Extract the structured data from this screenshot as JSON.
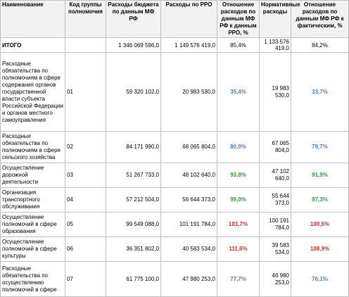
{
  "table": {
    "header": [
      "Наименование",
      "Код группы полномочия",
      "Расходы бюджета по данным МФ РФ",
      "Расходы по РРО",
      "Отношение расходов по данным МФ РФ к данным РРО, %",
      "Нормативные расходы",
      "Отношение расходов по данным МФ РФ к фактическим, %"
    ],
    "total": [
      "ИТОГО",
      "",
      "1 346 069 596,0",
      "1 149 576 419,0",
      "85,4%",
      "1 133 576 419,0",
      "84,2%"
    ],
    "rows": [
      {
        "cells": [
          "Расходные обязательства по полномочиям в сфере содержания органов государственной власти субъекта Российской Федерации и органов местного самоуправления",
          "01",
          "59 320 102,0",
          "20 983 530,0",
          "35,4%",
          "19 983 530,0",
          "33,7%"
        ],
        "color": "#4f81bd"
      },
      {
        "cells": [
          "Расходные обязательства по полномочиям в сфере сельского хозяйства",
          "02",
          "84 171 990,0",
          "68 065 804,0",
          "80,9%",
          "67 065 804,0",
          "79,7%"
        ],
        "color": "#4f81bd"
      },
      {
        "cells": [
          "Осуществление дорожной деятельности",
          "03",
          "51 267 733,0",
          "48 102 640,0",
          "93,8%",
          "47 102 640,0",
          "91,9%"
        ],
        "color": "#2e9b3a"
      },
      {
        "cells": [
          "Организация транспортного обслуживания",
          "04",
          "57 212 504,0",
          "56 644 373,0",
          "99,0%",
          "55 644 373,0",
          "97,3%"
        ],
        "color": "#2e9b3a"
      },
      {
        "cells": [
          "Осуществление полномочий в сфере образования",
          "05",
          "99 549 088,0",
          "101 191 784,0",
          "101,7%",
          "100 191 784,0",
          "100,6%"
        ],
        "color": "#d62d20"
      },
      {
        "cells": [
          "Осуществление полномочий в сфере культуры",
          "06",
          "36 351 802,0",
          "40 583 534,0",
          "111,6%",
          "39 583 534,0",
          "108,9%"
        ],
        "color": "#d62d20"
      },
      {
        "cells": [
          "Расходные обязательства по осуществлению полномочий в сфере",
          "07",
          "61 775 100,0",
          "47 980 253,0",
          "77,7%",
          "46 980 253,0",
          "76,1%"
        ],
        "color": "#4f81bd"
      }
    ]
  }
}
